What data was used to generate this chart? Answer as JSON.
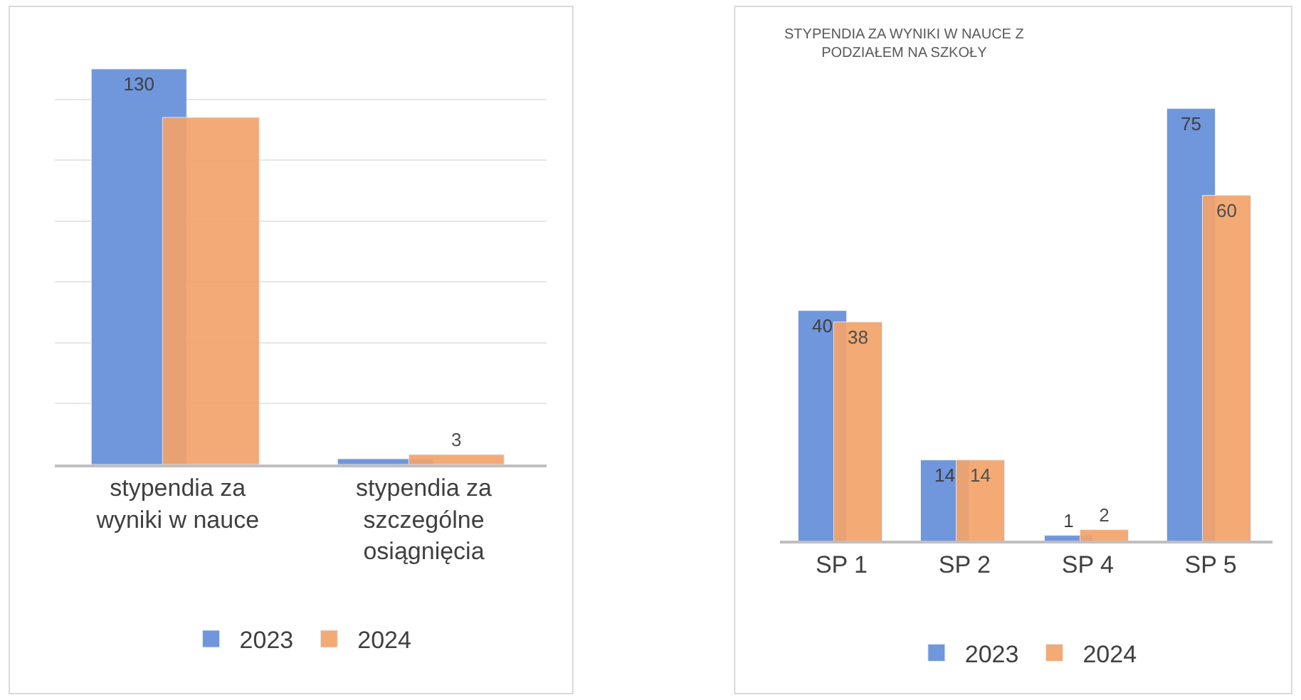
{
  "chart_data": [
    {
      "type": "bar",
      "categories": [
        "stypendia za wyniki w nauce",
        "stypendia za szczególne osiągnięcia"
      ],
      "series": [
        {
          "name": "2023",
          "color": "#7096dc",
          "values": [
            130,
            2
          ],
          "value_labels": [
            "130",
            null
          ]
        },
        {
          "name": "2024",
          "color": "#f2a36a",
          "values": [
            114,
            3
          ],
          "value_labels": [
            null,
            "3"
          ]
        }
      ],
      "tick_labels": "x",
      "grid": "y",
      "legend": "bottom"
    },
    {
      "type": "bar",
      "title": "STYPENDIA ZA WYNIKI W NAUCE Z PODZIAŁEM NA SZKOŁY",
      "categories": [
        "SP 1",
        "SP 2",
        "SP 4",
        "SP 5"
      ],
      "series": [
        {
          "name": "2023",
          "color": "#7096dc",
          "values": [
            40,
            14,
            1,
            75
          ]
        },
        {
          "name": "2024",
          "color": "#f2a36a",
          "values": [
            38,
            14,
            2,
            60
          ]
        }
      ],
      "tick_labels": "x",
      "data_labels": true,
      "grid": false,
      "legend": "bottom"
    }
  ]
}
